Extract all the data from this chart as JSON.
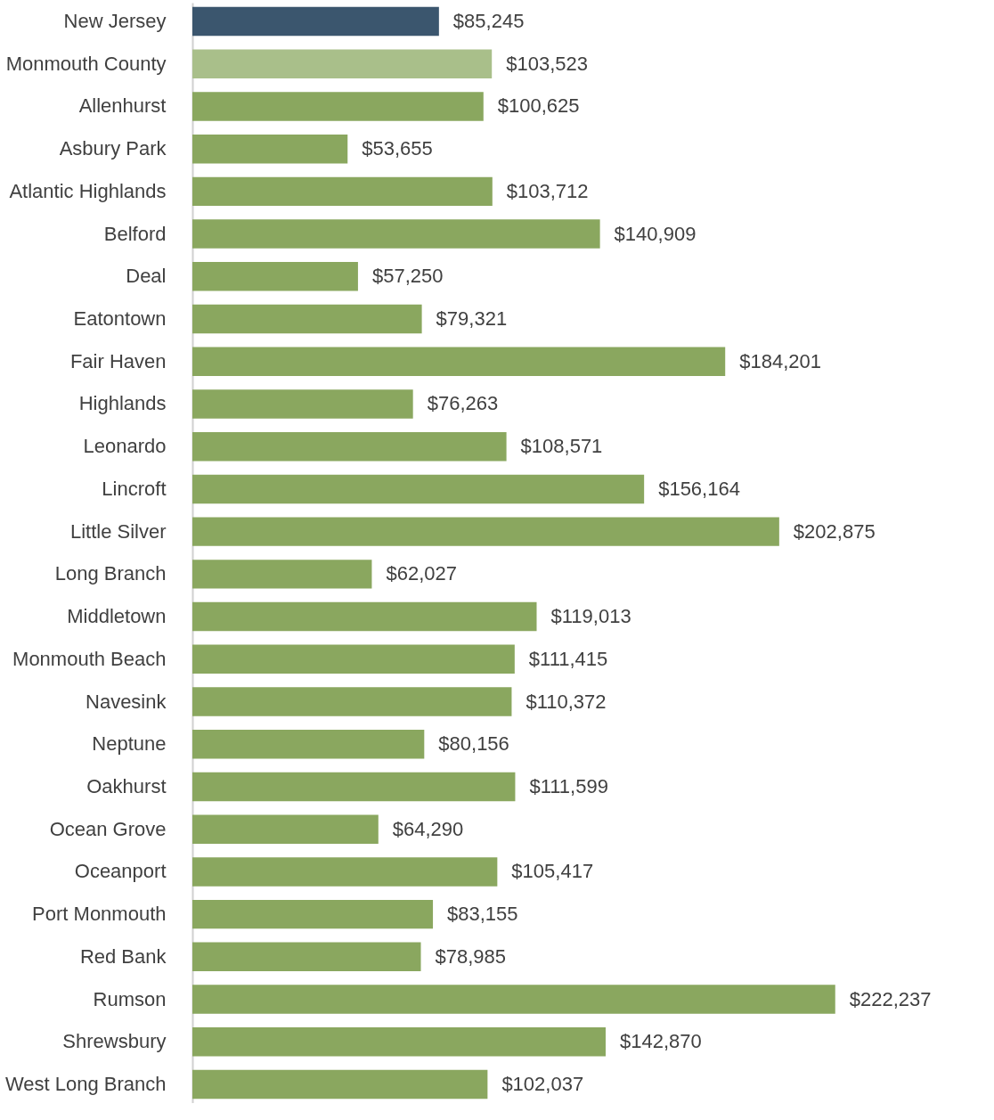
{
  "chart_data": {
    "type": "bar",
    "orientation": "horizontal",
    "categories": [
      "New Jersey",
      "Monmouth County",
      "Allenhurst",
      "Asbury Park",
      "Atlantic Highlands",
      "Belford",
      "Deal",
      "Eatontown",
      "Fair Haven",
      "Highlands",
      "Leonardo",
      "Lincroft",
      "Little Silver",
      "Long Branch",
      "Middletown",
      "Monmouth Beach",
      "Navesink",
      "Neptune",
      "Oakhurst",
      "Ocean Grove",
      "Oceanport",
      "Port Monmouth",
      "Red Bank",
      "Rumson",
      "Shrewsbury",
      "West Long Branch"
    ],
    "values": [
      85245,
      103523,
      100625,
      53655,
      103712,
      140909,
      57250,
      79321,
      184201,
      76263,
      108571,
      156164,
      202875,
      62027,
      119013,
      111415,
      110372,
      80156,
      111599,
      64290,
      105417,
      83155,
      78985,
      222237,
      142870,
      102037
    ],
    "value_labels": [
      "$85,245",
      "$103,523",
      "$100,625",
      "$53,655",
      "$103,712",
      "$140,909",
      "$57,250",
      "$79,321",
      "$184,201",
      "$76,263",
      "$108,571",
      "$156,164",
      "$202,875",
      "$62,027",
      "$119,013",
      "$111,415",
      "$110,372",
      "$80,156",
      "$111,599",
      "$64,290",
      "$105,417",
      "$83,155",
      "$78,985",
      "$222,237",
      "$142,870",
      "$102,037"
    ],
    "colors": [
      "#3b566e",
      "#a9bf8a",
      "#8aa75f",
      "#8aa75f",
      "#8aa75f",
      "#8aa75f",
      "#8aa75f",
      "#8aa75f",
      "#8aa75f",
      "#8aa75f",
      "#8aa75f",
      "#8aa75f",
      "#8aa75f",
      "#8aa75f",
      "#8aa75f",
      "#8aa75f",
      "#8aa75f",
      "#8aa75f",
      "#8aa75f",
      "#8aa75f",
      "#8aa75f",
      "#8aa75f",
      "#8aa75f",
      "#8aa75f",
      "#8aa75f",
      "#8aa75f"
    ],
    "data_labels": false
  }
}
